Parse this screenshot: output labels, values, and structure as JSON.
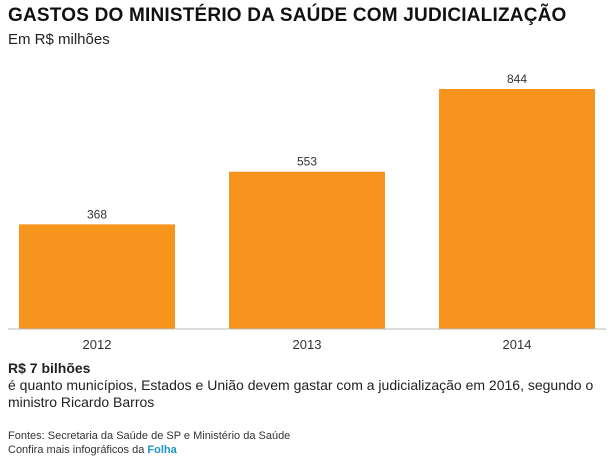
{
  "header": {
    "title": "GASTOS DO MINISTÉRIO DA SAÚDE COM JUDICIALIZAÇÃO",
    "subtitle": "Em R$ milhões"
  },
  "chart_data": {
    "type": "bar",
    "categories": [
      "2012",
      "2013",
      "2014"
    ],
    "values": [
      368,
      553,
      844
    ],
    "title": "GASTOS DO MINISTÉRIO DA SAÚDE COM JUDICIALIZAÇÃO",
    "ylabel": "Em R$ milhões",
    "ylim": [
      0,
      900
    ],
    "grid": false,
    "bar_color": "#f7941d",
    "data_labels": true
  },
  "note": {
    "headline": "R$ 7 bilhões",
    "text": "é quanto municípios, Estados e União devem gastar com a judicialização em 2016, segundo o ministro Ricardo Barros"
  },
  "footer": {
    "sources": "Fontes: Secretaria da Saúde de SP e Ministério da Saúde",
    "more_prefix": "Confira mais infográficos da",
    "more_link": "Folha",
    "link_color": "#1a96c8"
  }
}
